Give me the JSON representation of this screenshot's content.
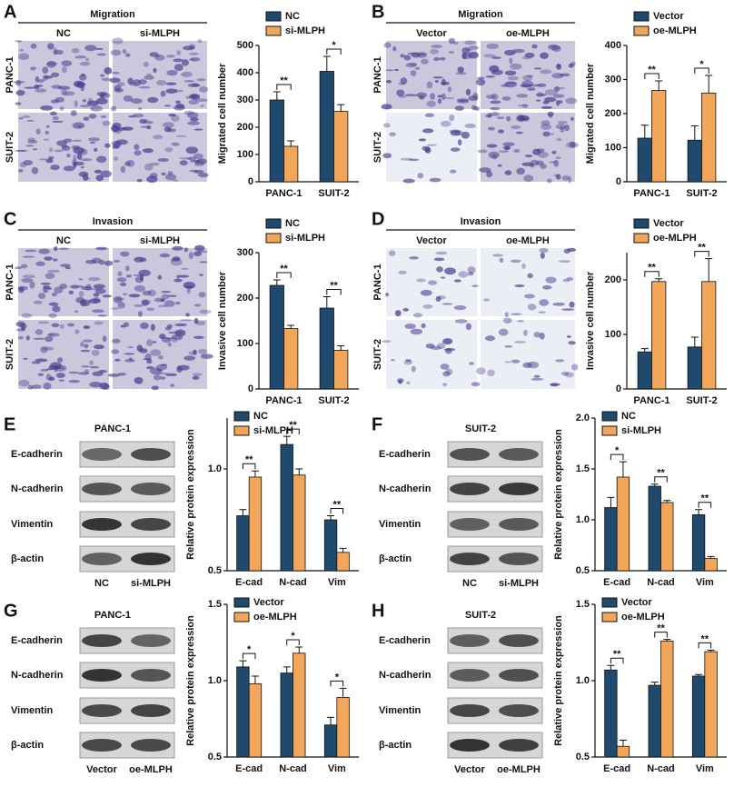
{
  "panels": [
    {
      "letter": "A",
      "title": "Migration",
      "columns": [
        "NC",
        "si-MLPH"
      ],
      "rows": [
        "PANC-1",
        "SUIT-2"
      ]
    },
    {
      "letter": "B",
      "title": "Migration",
      "columns": [
        "Vector",
        "oe-MLPH"
      ],
      "rows": [
        "PANC-1",
        "SUIT-2"
      ]
    },
    {
      "letter": "C",
      "title": "Invasion",
      "columns": [
        "NC",
        "si-MLPH"
      ],
      "rows": [
        "PANC-1",
        "SUIT-2"
      ]
    },
    {
      "letter": "D",
      "title": "Invasion",
      "columns": [
        "Vector",
        "oe-MLPH"
      ],
      "rows": [
        "PANC-1",
        "SUIT-2"
      ]
    },
    {
      "letter": "E",
      "title": "PANC-1",
      "columns": [
        "NC",
        "si-MLPH"
      ],
      "rows": [
        "E-cadherin",
        "N-cadherin",
        "Vimentin",
        "β-actin"
      ]
    },
    {
      "letter": "F",
      "title": "SUIT-2",
      "columns": [
        "NC",
        "si-MLPH"
      ],
      "rows": [
        "E-cadherin",
        "N-cadherin",
        "Vimentin",
        "β-actin"
      ]
    },
    {
      "letter": "G",
      "title": "PANC-1",
      "columns": [
        "Vector",
        "oe-MLPH"
      ],
      "rows": [
        "E-cadherin",
        "N-cadherin",
        "Vimentin",
        "β-actin"
      ]
    },
    {
      "letter": "H",
      "title": "SUIT-2",
      "columns": [
        "Vector",
        "oe-MLPH"
      ],
      "rows": [
        "E-cadherin",
        "N-cadherin",
        "Vimentin",
        "β-actin"
      ]
    }
  ],
  "chart_data": [
    {
      "type": "bar",
      "ylabel": "Migrated cell number",
      "categories": [
        "PANC-1",
        "SUIT-2"
      ],
      "ylim": [
        0,
        500
      ],
      "yticks": [
        0,
        100,
        200,
        300,
        400,
        500
      ],
      "series": [
        {
          "name": "NC",
          "color": "#1f4a6e",
          "values": [
            300,
            405
          ],
          "errors": [
            30,
            55
          ]
        },
        {
          "name": "si-MLPH",
          "color": "#f2a65a",
          "values": [
            130,
            258
          ],
          "errors": [
            20,
            25
          ]
        }
      ],
      "significance": [
        "**",
        "*"
      ]
    },
    {
      "type": "bar",
      "ylabel": "Migrated cell number",
      "categories": [
        "PANC-1",
        "SUIT-2"
      ],
      "ylim": [
        0,
        400
      ],
      "yticks": [
        0,
        100,
        200,
        300,
        400
      ],
      "series": [
        {
          "name": "Vector",
          "color": "#1f4a6e",
          "values": [
            128,
            122
          ],
          "errors": [
            38,
            42
          ]
        },
        {
          "name": "oe-MLPH",
          "color": "#f2a65a",
          "values": [
            268,
            260
          ],
          "errors": [
            28,
            52
          ]
        }
      ],
      "significance": [
        "**",
        "*"
      ]
    },
    {
      "type": "bar",
      "ylabel": "Invasive cell number",
      "categories": [
        "PANC-1",
        "SUIT-2"
      ],
      "ylim": [
        0,
        300
      ],
      "yticks": [
        0,
        100,
        200,
        300
      ],
      "series": [
        {
          "name": "NC",
          "color": "#1f4a6e",
          "values": [
            228,
            178
          ],
          "errors": [
            12,
            25
          ]
        },
        {
          "name": "si-MLPH",
          "color": "#f2a65a",
          "values": [
            133,
            85
          ],
          "errors": [
            7,
            10
          ]
        }
      ],
      "significance": [
        "**",
        "**"
      ]
    },
    {
      "type": "bar",
      "ylabel": "Invasive cell number",
      "categories": [
        "PANC-1",
        "SUIT-2"
      ],
      "ylim": [
        0,
        250
      ],
      "yticks": [
        0,
        100,
        200
      ],
      "series": [
        {
          "name": "Vector",
          "color": "#1f4a6e",
          "values": [
            68,
            77
          ],
          "errors": [
            6,
            18
          ]
        },
        {
          "name": "oe-MLPH",
          "color": "#f2a65a",
          "values": [
            197,
            197
          ],
          "errors": [
            5,
            42
          ]
        }
      ],
      "significance": [
        "**",
        "**"
      ]
    },
    {
      "type": "bar",
      "ylabel": "Relative protein expression",
      "categories": [
        "E-cad",
        "N-cad",
        "Vim"
      ],
      "ylim": [
        0.5,
        1.25
      ],
      "yticks": [
        0.5,
        {
          "value": 1,
          "label": "1.0"
        }
      ],
      "series": [
        {
          "name": "NC",
          "color": "#1f4a6e",
          "values": [
            0.77,
            1.12,
            0.75
          ],
          "errors": [
            0.03,
            0.04,
            0.02
          ]
        },
        {
          "name": "si-MLPH",
          "color": "#f2a65a",
          "values": [
            0.96,
            0.97,
            0.59
          ],
          "errors": [
            0.03,
            0.03,
            0.02
          ]
        }
      ],
      "significance": [
        "**",
        "**",
        "**"
      ]
    },
    {
      "type": "bar",
      "ylabel": "Relative protein expression",
      "categories": [
        "E-cad",
        "N-cad",
        "Vim"
      ],
      "ylim": [
        0.5,
        2.0
      ],
      "yticks": [
        0.5,
        {
          "value": 1,
          "label": "1.0"
        },
        1.5,
        {
          "value": 2,
          "label": "2.0"
        }
      ],
      "series": [
        {
          "name": "NC",
          "color": "#1f4a6e",
          "values": [
            1.12,
            1.33,
            1.05
          ],
          "errors": [
            0.1,
            0.02,
            0.05
          ]
        },
        {
          "name": "si-MLPH",
          "color": "#f2a65a",
          "values": [
            1.42,
            1.17,
            0.62
          ],
          "errors": [
            0.15,
            0.02,
            0.02
          ]
        }
      ],
      "significance": [
        "*",
        "**",
        "**"
      ]
    },
    {
      "type": "bar",
      "ylabel": "Relative protein expression",
      "categories": [
        "E-cad",
        "N-cad",
        "Vim"
      ],
      "ylim": [
        0.5,
        1.5
      ],
      "yticks": [
        0.5,
        {
          "value": 1,
          "label": "1.0"
        },
        1.5
      ],
      "series": [
        {
          "name": "Vector",
          "color": "#1f4a6e",
          "values": [
            1.09,
            1.05,
            0.71
          ],
          "errors": [
            0.04,
            0.04,
            0.05
          ]
        },
        {
          "name": "oe-MLPH",
          "color": "#f2a65a",
          "values": [
            0.98,
            1.18,
            0.89
          ],
          "errors": [
            0.05,
            0.04,
            0.06
          ]
        }
      ],
      "significance": [
        "*",
        "*",
        "*"
      ]
    },
    {
      "type": "bar",
      "ylabel": "Relative protein expression",
      "categories": [
        "E-cad",
        "N-cad",
        "Vim"
      ],
      "ylim": [
        0.5,
        1.5
      ],
      "yticks": [
        0.5,
        {
          "value": 1,
          "label": "1.0"
        },
        1.5
      ],
      "series": [
        {
          "name": "Vector",
          "color": "#1f4a6e",
          "values": [
            1.07,
            0.97,
            1.03
          ],
          "errors": [
            0.03,
            0.02,
            0.01
          ]
        },
        {
          "name": "oe-MLPH",
          "color": "#f2a65a",
          "values": [
            0.57,
            1.26,
            1.19
          ],
          "errors": [
            0.04,
            0.01,
            0.01
          ]
        }
      ],
      "significance": [
        "**",
        "**",
        "**"
      ]
    }
  ]
}
